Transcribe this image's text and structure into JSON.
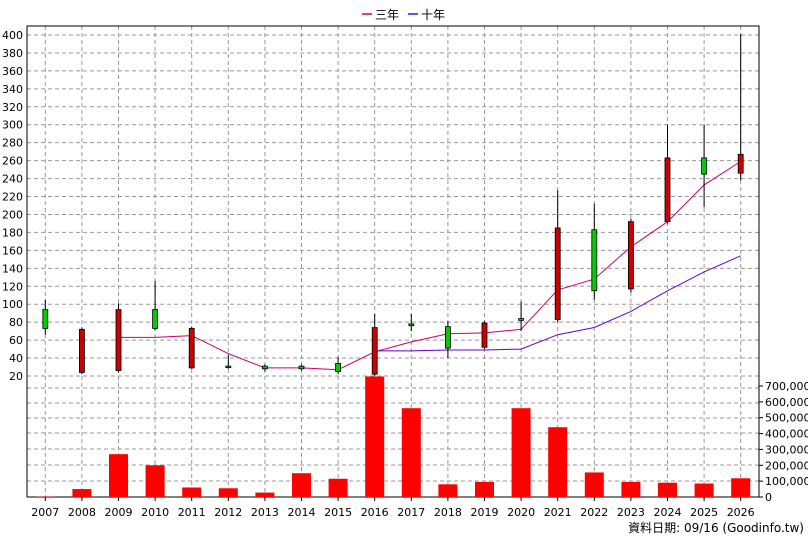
{
  "chart_data": {
    "type": "candlestick",
    "legend": [
      {
        "name": "三年",
        "color": "#cc0066"
      },
      {
        "name": "十年",
        "color": "#6600cc"
      }
    ],
    "years": [
      "2007",
      "2008",
      "2009",
      "2010",
      "2011",
      "2012",
      "2013",
      "2014",
      "2015",
      "2016",
      "2017",
      "2018",
      "2019",
      "2020",
      "2021",
      "2022",
      "2023",
      "2024",
      "2025",
      "2026"
    ],
    "price_axis": {
      "min": 20,
      "max": 400,
      "ticks": [
        20,
        40,
        60,
        80,
        100,
        120,
        140,
        160,
        180,
        200,
        220,
        240,
        260,
        280,
        300,
        320,
        340,
        360,
        380,
        400
      ]
    },
    "volume_axis": {
      "min": 0,
      "max": 700000,
      "ticks": [
        "0",
        "100,000",
        "200,000",
        "300,000",
        "400,000",
        "500,000",
        "600,000",
        "700,000"
      ],
      "tick_values": [
        0,
        100000,
        200000,
        300000,
        400000,
        500000,
        600000,
        700000
      ]
    },
    "candles": [
      {
        "year": "2007",
        "open": 73,
        "close": 94,
        "high": 105,
        "low": 66
      },
      {
        "year": "2008",
        "open": 72,
        "close": 24,
        "high": 74,
        "low": 22
      },
      {
        "year": "2009",
        "open": 94,
        "close": 26,
        "high": 101,
        "low": 24
      },
      {
        "year": "2010",
        "open": 73,
        "close": 94,
        "high": 126,
        "low": 71
      },
      {
        "year": "2011",
        "open": 73,
        "close": 29,
        "high": 75,
        "low": 28
      },
      {
        "year": "2012",
        "open": 30,
        "close": 31,
        "high": 44,
        "low": 28
      },
      {
        "year": "2013",
        "open": 28,
        "close": 31,
        "high": 33,
        "low": 25
      },
      {
        "year": "2014",
        "open": 28,
        "close": 31,
        "high": 33,
        "low": 26
      },
      {
        "year": "2015",
        "open": 25,
        "close": 34,
        "high": 41,
        "low": 22
      },
      {
        "year": "2016",
        "open": 74,
        "close": 22,
        "high": 89,
        "low": 20
      },
      {
        "year": "2017",
        "open": 76,
        "close": 78,
        "high": 89,
        "low": 70
      },
      {
        "year": "2018",
        "open": 51,
        "close": 75,
        "high": 81,
        "low": 40
      },
      {
        "year": "2019",
        "open": 79,
        "close": 52,
        "high": 81,
        "low": 50
      },
      {
        "year": "2020",
        "open": 82,
        "close": 84,
        "high": 103,
        "low": 70
      },
      {
        "year": "2021",
        "open": 185,
        "close": 83,
        "high": 227,
        "low": 80
      },
      {
        "year": "2022",
        "open": 115,
        "close": 183,
        "high": 212,
        "low": 105
      },
      {
        "year": "2023",
        "open": 192,
        "close": 117,
        "high": 195,
        "low": 113
      },
      {
        "year": "2024",
        "open": 263,
        "close": 192,
        "high": 300,
        "low": 190
      },
      {
        "year": "2025",
        "open": 245,
        "close": 263,
        "high": 300,
        "low": 208
      },
      {
        "year": "2026",
        "open": 267,
        "close": 246,
        "high": 401,
        "low": 238
      }
    ],
    "series": [
      {
        "name": "三年",
        "values": [
          null,
          null,
          63,
          63,
          65,
          45,
          29,
          29,
          27,
          47,
          58,
          67,
          68,
          72,
          116,
          128,
          164,
          192,
          233,
          259
        ]
      },
      {
        "name": "十年",
        "values": [
          null,
          null,
          null,
          null,
          null,
          null,
          null,
          null,
          null,
          48,
          48,
          49,
          49,
          50,
          66,
          74,
          92,
          115,
          136,
          154
        ]
      }
    ],
    "volume": [
      2000,
      50000,
      270000,
      200000,
      60000,
      55000,
      28000,
      150000,
      115000,
      760000,
      560000,
      80000,
      95000,
      560000,
      440000,
      155000,
      95000,
      90000,
      85000,
      118000
    ],
    "colors": {
      "up": "#00cc00",
      "down": "#cc0000",
      "volume": "#ff0000",
      "grid": "#999999"
    }
  },
  "footer": {
    "text": "資料日期: 09/16 (Goodinfo.tw)"
  }
}
